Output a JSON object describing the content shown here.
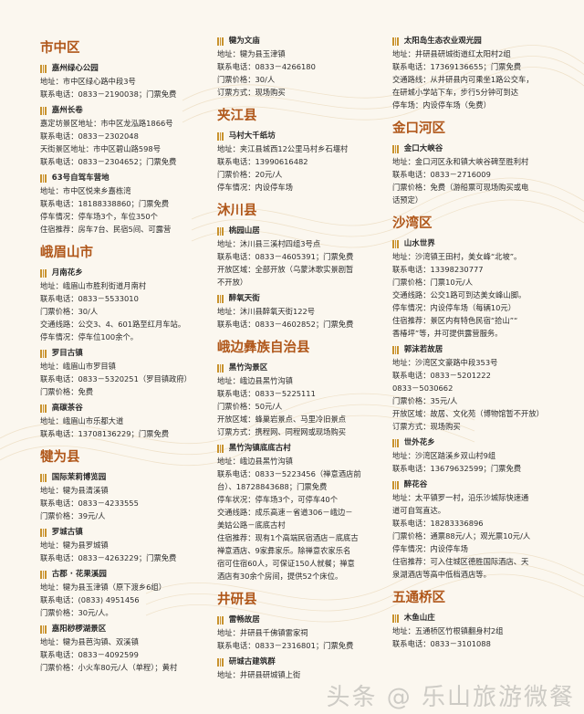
{
  "columns": [
    {
      "regions": [
        {
          "title": "市中区",
          "entries": [
            {
              "name": "嘉州绿心公园",
              "lines": [
                "地址：市中区绿心路中段3号",
                "联系电话：0833－2190038；门票免费"
              ]
            },
            {
              "name": "嘉州长卷",
              "lines": [
                "嘉定坊景区地址：市中区龙泓路1866号",
                "联系电话：0833－2302048",
                "天街景区地址：市中区碧山路598号",
                "联系电话：0833－2304652；门票免费"
              ]
            },
            {
              "name": "63号自驾车营地",
              "lines": [
                "地址：市中区悦来乡嘉栋湾",
                "联系电话：18188338860；门票免费",
                "停车情况：停车场3个，车位350个",
                "住宿推荐：房车7台、民宿5间、可露营"
              ]
            }
          ]
        },
        {
          "title": "峨眉山市",
          "entries": [
            {
              "name": "月南花乡",
              "lines": [
                "地址：峨眉山市胜利街道月南村",
                "联系电话：0833－5533010",
                "门票价格：30/人",
                "交通线路：公交3、4、601路至红月车站。",
                "停车情况：停车位100余个。"
              ]
            },
            {
              "name": "罗目古镇",
              "lines": [
                "地址：峨眉山市罗目镇",
                "联系电话：0833－5320251（罗目镇政府）",
                "门票价格：免费"
              ]
            },
            {
              "name": "高碳茶谷",
              "lines": [
                "地址：峨眉山市乐都大道",
                "联系电话：13708136229；门票免费"
              ]
            }
          ]
        },
        {
          "title": "犍为县",
          "entries": [
            {
              "name": "国际茉莉博览园",
              "lines": [
                "地址：犍为县清溪镇",
                "联系电话：0833－4233555",
                "门票价格：39元/人"
              ]
            },
            {
              "name": "罗城古镇",
              "lines": [
                "地址：犍为县罗城镇",
                "联系电话：0833－4263229；门票免费"
              ]
            },
            {
              "name": "古郡 · 花果溪园",
              "lines": [
                "地址：犍为县玉津镇（原下渡乡6组）",
                "联系电话：(0833) 4951456",
                "门票价格：30元/人。"
              ]
            },
            {
              "name": "嘉阳桫椤湖景区",
              "lines": [
                "地址：犍为县芭沟镇、双溪镇",
                "联系电话：0833－4092599",
                "门票价格：小火车80元/人（单程）；黄村"
              ]
            }
          ]
        }
      ]
    },
    {
      "regions": [
        {
          "title": "",
          "entries": [
            {
              "name": "犍为文庙",
              "lines": [
                "地址：犍为县玉津镇",
                "联系电话：0833－4266180",
                "门票价格：30/人",
                "订票方式：现场购买"
              ]
            }
          ]
        },
        {
          "title": "夹江县",
          "entries": [
            {
              "name": "马村大千纸坊",
              "lines": [
                "地址：夹江县城西12公里马村乡石堰村",
                "联系电话：13990616482",
                "门票价格：20元/人",
                "停车情况：内设停车场"
              ]
            }
          ]
        },
        {
          "title": "沐川县",
          "entries": [
            {
              "name": "桃园山居",
              "lines": [
                "地址：沐川县三溪村四组3号点",
                "联系电话：0833－4605391；门票免费",
                "开放区域：全部开放（乌蒙沐歌实景剧暂",
                "不开放）"
              ]
            },
            {
              "name": "醉氧天街",
              "lines": [
                "地址：沐川县醉氧天街122号",
                "联系电话：0833－4602852；门票免费"
              ]
            }
          ]
        },
        {
          "title": "峨边彝族自治县",
          "entries": [
            {
              "name": "黑竹沟景区",
              "lines": [
                "地址：峨边县黑竹沟镇",
                "联系电话：0833－5225111",
                "门票价格：50元/人",
                "开放区域：蜂巢岩景点、马里冷旧景点",
                "订票方式：携程网、同程网或现场购买"
              ]
            },
            {
              "name": "黑竹沟镇底底古村",
              "lines": [
                "地址：峨边县黑竹沟镇",
                "联系电话：0833－5223456（禅意酒店前",
                "台）、18728843688；门票免费",
                "停车状况：停车场3个，可停车40个",
                "交通线路：成乐高速－省道306－峨边－",
                "美姑公路－底底古村",
                "住宿推荐：现有1个高端民宿酒店－底底古",
                "禅意酒店、9家彝家乐。除禅意农家乐名",
                "宿可住宿60人，可保证150人就餐；禅意",
                "酒店有30余个房间，提供52个床位。"
              ]
            }
          ]
        },
        {
          "title": "井研县",
          "entries": [
            {
              "name": "雷畅故居",
              "lines": [
                "地址：井研县千佛镇雷家祠",
                "联系电话：0833－2316801；门票免费"
              ]
            },
            {
              "name": "研城古建筑群",
              "lines": [
                "地址：井研县研城镇上街"
              ]
            }
          ]
        }
      ]
    },
    {
      "regions": [
        {
          "title": "",
          "entries": [
            {
              "name": "太阳岛生态农业观光园",
              "lines": [
                "地址：井研县研城街道红太阳村2组",
                "联系电话：17369136655；门票免费",
                "交通路线：从井研县内可乘坐1路公交车，",
                "在研城小学站下车，步行5分钟可到达",
                "停车场：内设停车场（免费）"
              ]
            }
          ]
        },
        {
          "title": "金口河区",
          "entries": [
            {
              "name": "金口大峡谷",
              "lines": [
                "地址：金口河区永和镇大峡谷碑至胜利村",
                "联系电话：0833－2716009",
                "门票价格：免费（游船票可现场购买或电",
                "话预定）"
              ]
            }
          ]
        },
        {
          "title": "沙湾区",
          "entries": [
            {
              "name": "山水世界",
              "lines": [
                "地址：沙湾镇王田村，美女峰“北坡”。",
                "联系电话：13398230777",
                "门票价格：门票10元/人",
                "交通线路：公交1路可到达美女峰山脚。",
                "停车情况：内设停车场（每辆10元）",
                "住宿推荐：景区内有特色民宿“拾山”“",
                "香椿坪”等，并可提供露营服务。"
              ]
            },
            {
              "name": "郭沫若故居",
              "lines": [
                "地址：沙湾区文豪路中段353号",
                "联系电话：0833－5201222",
                "0833－5030662",
                "门票价格：35元/人",
                "开放区域：故居、文化苑（博物馆暂不开放）",
                "订票方式：现场购买"
              ]
            },
            {
              "name": "世外花乡",
              "lines": [
                "地址：沙湾区踏溪乡双山村9组",
                "联系电话：13679632599；门票免费"
              ]
            },
            {
              "name": "醉花谷",
              "lines": [
                "地址：太平镇罗一村，沿乐沙城际快速通",
                "道可自驾直达。",
                "联系电话：18283336896",
                "门票价格：通票88元/人；观光票10元/人",
                "停车情况：内设停车场",
                "住宿推荐：可入住城区德胜国际酒店、天",
                "泉湖酒店等高中低档酒店等。"
              ]
            }
          ]
        },
        {
          "title": "五通桥区",
          "entries": [
            {
              "name": "木鱼山庄",
              "lines": [
                "地址：五通桥区竹根镇翻身村2组",
                "联系电话：0833－3101088"
              ]
            }
          ]
        }
      ]
    }
  ],
  "watermark": "头条 @ 乐山旅游微餐"
}
